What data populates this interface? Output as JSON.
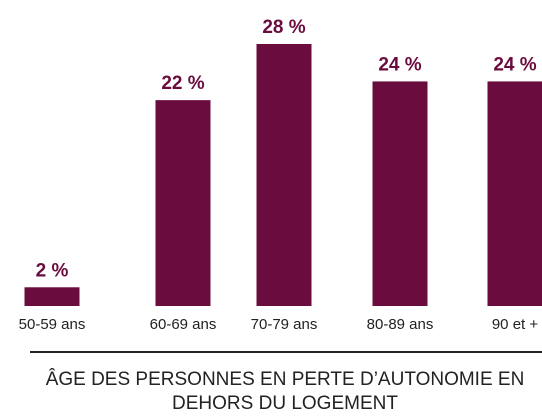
{
  "chart_data": {
    "type": "bar",
    "title": "ÂGE DES PERSONNES EN PERTE D’AUTONOMIE EN DEHORS DU LOGEMENT",
    "categories": [
      "50-59 ans",
      "60-69 ans",
      "70-79 ans",
      "80-89 ans",
      "90 et +"
    ],
    "values": [
      2,
      22,
      28,
      24,
      24
    ],
    "value_labels": [
      "2 %",
      "22 %",
      "28 %",
      "24 %",
      "24 %"
    ],
    "color": "#6a0d3e"
  }
}
